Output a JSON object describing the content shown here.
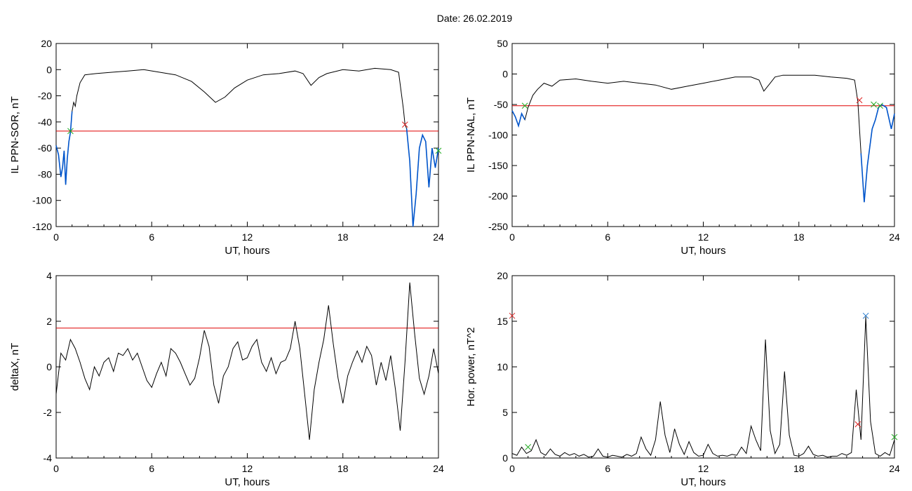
{
  "header": {
    "date_label": "Date:  26.02.2019"
  },
  "colors": {
    "trace": "#000000",
    "threshold": "#e00000",
    "event": "#0055cc",
    "mark_green": "#22aa22",
    "mark_red": "#dd2222",
    "mark_blue": "#2277cc"
  },
  "chart_data": [
    {
      "type": "line",
      "ylabel": "IL PPN-SOR, nT",
      "xlabel": "UT, hours",
      "xlim": [
        0,
        24
      ],
      "ylim": [
        -120,
        20
      ],
      "xticks": [
        0,
        6,
        12,
        18,
        24
      ],
      "yticks": [
        20,
        0,
        -20,
        -40,
        -60,
        -80,
        -100,
        -120
      ],
      "threshold": -47,
      "series": [
        {
          "x": [
            0,
            0.15,
            0.3,
            0.4,
            0.5,
            0.6,
            0.7,
            0.8,
            0.9,
            1.0,
            1.1,
            1.2,
            1.3,
            1.5,
            1.8,
            2.5,
            3.5,
            4.5,
            5.5,
            6.5,
            7.5,
            8.5,
            9.3,
            10.0,
            10.6,
            11.2,
            12.0,
            13.0,
            14.0,
            15.0,
            15.5,
            16.0,
            16.5,
            17.0,
            18.0,
            19.0,
            20.0,
            21.0,
            21.5,
            21.8,
            21.9,
            22.0,
            22.2,
            22.4,
            22.6,
            22.8,
            23.0,
            23.2,
            23.4,
            23.6,
            23.8,
            24.0
          ],
          "y": [
            -58,
            -65,
            -82,
            -75,
            -62,
            -88,
            -68,
            -55,
            -48,
            -32,
            -25,
            -28,
            -20,
            -10,
            -4,
            -3,
            -2,
            -1,
            0,
            -2,
            -4,
            -9,
            -17,
            -25,
            -21,
            -14,
            -8,
            -4,
            -3,
            -1,
            -3,
            -12,
            -6,
            -3,
            0,
            -1,
            1,
            0,
            -2,
            -30,
            -42,
            -45,
            -70,
            -120,
            -95,
            -60,
            -50,
            -55,
            -90,
            -60,
            -75,
            -60
          ]
        }
      ],
      "markers": [
        {
          "x": 0.9,
          "y": -47,
          "color": "green"
        },
        {
          "x": 21.9,
          "y": -42,
          "color": "red"
        },
        {
          "x": 24.0,
          "y": -62,
          "color": "green"
        }
      ],
      "event_intervals": [
        [
          0,
          1.0
        ],
        [
          22.0,
          24.0
        ]
      ]
    },
    {
      "type": "line",
      "ylabel": "IL PPN-NAL, nT",
      "xlabel": "UT, hours",
      "xlim": [
        0,
        24
      ],
      "ylim": [
        -250,
        50
      ],
      "xticks": [
        0,
        6,
        12,
        18,
        24
      ],
      "yticks": [
        50,
        0,
        -50,
        -100,
        -150,
        -200,
        -250
      ],
      "threshold": -52,
      "series": [
        {
          "x": [
            0,
            0.2,
            0.4,
            0.6,
            0.8,
            1.0,
            1.3,
            1.6,
            2.0,
            2.5,
            3.0,
            4.0,
            5.0,
            6.0,
            7.0,
            8.0,
            9.0,
            10.0,
            11.0,
            12.0,
            13.0,
            14.0,
            15.0,
            15.5,
            15.8,
            16.2,
            16.5,
            17.0,
            18.0,
            19.0,
            20.0,
            21.0,
            21.5,
            21.7,
            21.9,
            22.1,
            22.3,
            22.6,
            22.8,
            23.0,
            23.2,
            23.5,
            23.8,
            24.0
          ],
          "y": [
            -60,
            -70,
            -85,
            -65,
            -75,
            -55,
            -35,
            -25,
            -15,
            -20,
            -10,
            -8,
            -12,
            -15,
            -12,
            -15,
            -18,
            -25,
            -20,
            -15,
            -10,
            -5,
            -5,
            -10,
            -28,
            -15,
            -5,
            -2,
            -2,
            -2,
            -5,
            -7,
            -10,
            -45,
            -130,
            -210,
            -150,
            -90,
            -75,
            -55,
            -50,
            -55,
            -90,
            -65
          ]
        }
      ],
      "markers": [
        {
          "x": 0.8,
          "y": -52,
          "color": "green"
        },
        {
          "x": 21.8,
          "y": -43,
          "color": "red"
        },
        {
          "x": 22.7,
          "y": -50,
          "color": "green"
        },
        {
          "x": 23.1,
          "y": -52,
          "color": "green"
        }
      ],
      "event_intervals": [
        [
          0,
          0.9
        ],
        [
          21.8,
          24.0
        ]
      ]
    },
    {
      "type": "line",
      "ylabel": "deltaX, nT",
      "xlabel": "UT, hours",
      "xlim": [
        0,
        24
      ],
      "ylim": [
        -4,
        4
      ],
      "xticks": [
        0,
        6,
        12,
        18,
        24
      ],
      "yticks": [
        4,
        2,
        0,
        -2,
        -4
      ],
      "threshold": 1.7,
      "series": [
        {
          "x": [
            0,
            0.3,
            0.6,
            0.9,
            1.2,
            1.5,
            1.8,
            2.1,
            2.4,
            2.7,
            3.0,
            3.3,
            3.6,
            3.9,
            4.2,
            4.5,
            4.8,
            5.1,
            5.4,
            5.7,
            6.0,
            6.3,
            6.6,
            6.9,
            7.2,
            7.5,
            7.8,
            8.1,
            8.4,
            8.7,
            9.0,
            9.3,
            9.6,
            9.9,
            10.2,
            10.5,
            10.8,
            11.1,
            11.4,
            11.7,
            12.0,
            12.3,
            12.6,
            12.9,
            13.2,
            13.5,
            13.8,
            14.1,
            14.4,
            14.7,
            15.0,
            15.3,
            15.6,
            15.9,
            16.2,
            16.5,
            16.8,
            17.1,
            17.4,
            17.7,
            18.0,
            18.3,
            18.6,
            18.9,
            19.2,
            19.5,
            19.8,
            20.1,
            20.4,
            20.7,
            21.0,
            21.3,
            21.6,
            21.9,
            22.2,
            22.5,
            22.8,
            23.1,
            23.4,
            23.7,
            24.0
          ],
          "y": [
            -1.2,
            0.6,
            0.3,
            1.2,
            0.8,
            0.2,
            -0.5,
            -1.0,
            0.0,
            -0.4,
            0.2,
            0.4,
            -0.2,
            0.6,
            0.5,
            0.8,
            0.3,
            0.6,
            0.0,
            -0.6,
            -0.9,
            -0.3,
            0.2,
            -0.4,
            0.8,
            0.6,
            0.2,
            -0.3,
            -0.8,
            -0.5,
            0.4,
            1.6,
            0.9,
            -0.8,
            -1.6,
            -0.4,
            0.0,
            0.8,
            1.1,
            0.3,
            0.4,
            0.9,
            1.2,
            0.2,
            -0.2,
            0.4,
            -0.3,
            0.2,
            0.3,
            0.8,
            2.0,
            0.8,
            -1.2,
            -3.2,
            -1.0,
            0.2,
            1.2,
            2.7,
            1.0,
            -0.5,
            -1.6,
            -0.4,
            0.2,
            0.7,
            0.2,
            0.9,
            0.5,
            -0.8,
            0.2,
            -0.6,
            0.5,
            -1.0,
            -2.8,
            0.2,
            3.7,
            1.5,
            -0.5,
            -1.2,
            -0.4,
            0.8,
            -0.3
          ]
        }
      ]
    },
    {
      "type": "line",
      "ylabel": "Hor. power, nT^2",
      "xlabel": "UT, hours",
      "xlim": [
        0,
        24
      ],
      "ylim": [
        0,
        20
      ],
      "xticks": [
        0,
        6,
        12,
        18,
        24
      ],
      "yticks": [
        20,
        15,
        10,
        5,
        0
      ],
      "series": [
        {
          "x": [
            0,
            0.3,
            0.6,
            0.9,
            1.2,
            1.5,
            1.8,
            2.1,
            2.4,
            2.7,
            3.0,
            3.3,
            3.6,
            3.9,
            4.2,
            4.5,
            4.8,
            5.1,
            5.4,
            5.7,
            6.0,
            6.3,
            6.6,
            6.9,
            7.2,
            7.5,
            7.8,
            8.1,
            8.4,
            8.7,
            9.0,
            9.3,
            9.6,
            9.9,
            10.2,
            10.5,
            10.8,
            11.1,
            11.4,
            11.7,
            12.0,
            12.3,
            12.6,
            12.9,
            13.2,
            13.5,
            13.8,
            14.1,
            14.4,
            14.7,
            15.0,
            15.3,
            15.6,
            15.9,
            16.2,
            16.5,
            16.8,
            17.1,
            17.4,
            17.7,
            18.0,
            18.3,
            18.6,
            18.9,
            19.2,
            19.5,
            19.8,
            20.1,
            20.4,
            20.7,
            21.0,
            21.3,
            21.6,
            21.9,
            22.2,
            22.5,
            22.8,
            23.1,
            23.4,
            23.7,
            24.0
          ],
          "y": [
            0.5,
            0.3,
            1.2,
            0.5,
            0.8,
            2.0,
            0.6,
            0.3,
            1.0,
            0.4,
            0.2,
            0.6,
            0.3,
            0.5,
            0.2,
            0.4,
            0.1,
            0.2,
            1.0,
            0.2,
            0.1,
            0.3,
            0.2,
            0.1,
            0.4,
            0.2,
            0.5,
            2.3,
            1.0,
            0.3,
            2.0,
            6.2,
            2.5,
            0.6,
            3.2,
            1.5,
            0.4,
            1.8,
            0.6,
            0.2,
            0.3,
            1.5,
            0.5,
            0.2,
            0.3,
            0.2,
            0.4,
            0.3,
            1.2,
            0.5,
            3.5,
            2.0,
            0.8,
            13.0,
            3.0,
            0.5,
            1.5,
            9.5,
            2.5,
            0.3,
            0.2,
            0.5,
            1.3,
            0.4,
            0.2,
            0.3,
            0.1,
            0.2,
            0.2,
            0.5,
            0.3,
            0.6,
            7.5,
            2.0,
            15.5,
            4.0,
            0.5,
            0.2,
            0.6,
            0.3,
            2.0
          ]
        }
      ],
      "markers": [
        {
          "x": 0.0,
          "y": 15.6,
          "color": "red"
        },
        {
          "x": 1.0,
          "y": 1.2,
          "color": "green"
        },
        {
          "x": 21.7,
          "y": 3.7,
          "color": "red"
        },
        {
          "x": 22.2,
          "y": 15.6,
          "color": "blue"
        },
        {
          "x": 24.0,
          "y": 2.3,
          "color": "green"
        }
      ]
    }
  ]
}
